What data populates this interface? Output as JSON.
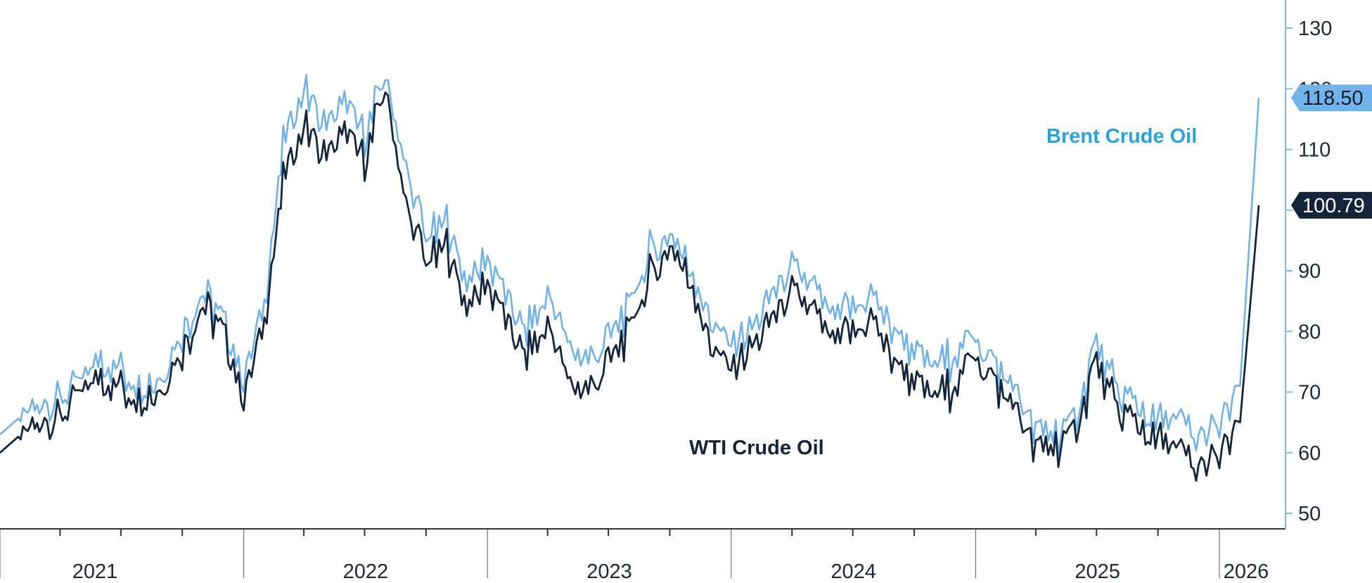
{
  "chart_data": {
    "type": "line",
    "title": "",
    "xlabel": "",
    "ylabel": "",
    "x_range": [
      "2021-01",
      "2026-03"
    ],
    "ylim": [
      48,
      135
    ],
    "y_ticks": [
      50,
      60,
      70,
      80,
      90,
      100,
      110,
      120,
      130
    ],
    "y_axis_side": "right",
    "x_ticks": [
      "2021",
      "2022",
      "2023",
      "2024",
      "2025",
      "2026"
    ],
    "grid": false,
    "colors": {
      "brent": "#6fb3ea",
      "wti": "#14253b",
      "axis": "#7fbde8"
    },
    "x_dates": [
      "2021-01",
      "2021-02",
      "2021-03",
      "2021-04",
      "2021-05",
      "2021-06",
      "2021-07",
      "2021-08",
      "2021-09",
      "2021-10",
      "2021-11",
      "2021-12",
      "2022-01",
      "2022-02",
      "2022-03",
      "2022-04",
      "2022-05",
      "2022-06",
      "2022-07",
      "2022-08",
      "2022-09",
      "2022-10",
      "2022-11",
      "2022-12",
      "2023-01",
      "2023-02",
      "2023-03",
      "2023-04",
      "2023-05",
      "2023-06",
      "2023-07",
      "2023-08",
      "2023-09",
      "2023-10",
      "2023-11",
      "2023-12",
      "2024-01",
      "2024-02",
      "2024-03",
      "2024-04",
      "2024-05",
      "2024-06",
      "2024-07",
      "2024-08",
      "2024-09",
      "2024-10",
      "2024-11",
      "2024-12",
      "2025-01",
      "2025-02",
      "2025-03",
      "2025-04",
      "2025-05",
      "2025-06",
      "2025-07",
      "2025-08",
      "2025-09",
      "2025-10",
      "2025-11",
      "2025-12",
      "2026-01",
      "2026-02",
      "2026-03"
    ],
    "series": [
      {
        "name": "Brent Crude Oil",
        "color": "#6fb3ea",
        "last_value": "118.50",
        "values": [
          63,
          66,
          68,
          70,
          72,
          76,
          74,
          70,
          73,
          80,
          86,
          82,
          72,
          85,
          110,
          120,
          114,
          118,
          112,
          122,
          106,
          95,
          98,
          88,
          92,
          85,
          80,
          86,
          78,
          75,
          79,
          84,
          93,
          96,
          90,
          82,
          77,
          81,
          86,
          90,
          88,
          82,
          84,
          86,
          80,
          77,
          74,
          76,
          80,
          74,
          71,
          63,
          63,
          66,
          78,
          70,
          67,
          65,
          65,
          62,
          64,
          71,
          118.5
        ]
      },
      {
        "name": "WTI Crude Oil",
        "color": "#14253b",
        "last_value": "100.79",
        "values": [
          60,
          63,
          65,
          67,
          70,
          73,
          71,
          68,
          71,
          77,
          84,
          80,
          69,
          82,
          104,
          114,
          109,
          113,
          108,
          120,
          100,
          91,
          94,
          84,
          88,
          81,
          76,
          81,
          72,
          70,
          75,
          80,
          89,
          94,
          88,
          78,
          73,
          78,
          82,
          86,
          84,
          78,
          80,
          82,
          75,
          72,
          69,
          71,
          77,
          71,
          68,
          60,
          61,
          64,
          75,
          67,
          64,
          62,
          60,
          57,
          59,
          65,
          100.79
        ]
      }
    ],
    "annotations": [
      {
        "text": "Brent Crude Oil",
        "series": "Brent Crude Oil"
      },
      {
        "text": "WTI Crude Oil",
        "series": "WTI Crude Oil"
      }
    ]
  }
}
